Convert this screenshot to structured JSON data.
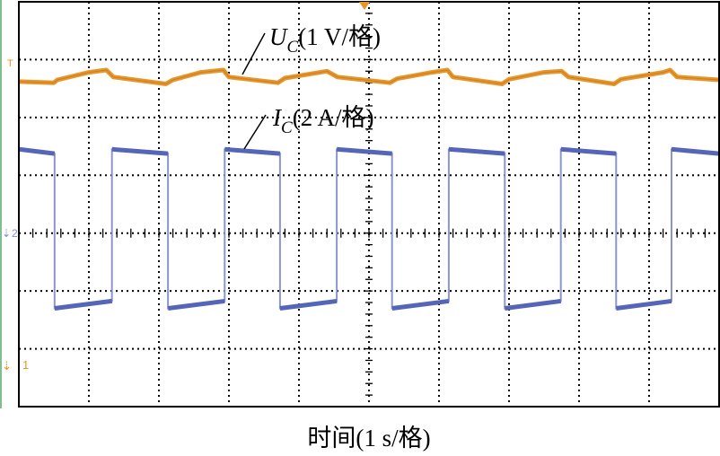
{
  "chart_data": {
    "type": "line",
    "title": "",
    "xlabel": "时间(1 s/格)",
    "ylabel": "",
    "xlim": [
      0,
      10
    ],
    "divisions": {
      "x": 10,
      "y": 7
    },
    "grid": true,
    "legend": "none",
    "markers": {
      "trigger": "T",
      "ch1": "1",
      "ch2": "2"
    },
    "series": [
      {
        "name": "U_C",
        "label_main": "U",
        "label_sub": "C",
        "label_scale": "(1 V/格)",
        "unit": "V",
        "scale_per_div": 1,
        "ground_div_from_top": 6.3,
        "color": "#E8962A",
        "points": [
          [
            0,
            4.92
          ],
          [
            0.5,
            4.9
          ],
          [
            0.55,
            4.95
          ],
          [
            1.0,
            5.08
          ],
          [
            1.25,
            5.12
          ],
          [
            1.35,
            5.0
          ],
          [
            2.1,
            4.88
          ],
          [
            2.2,
            4.95
          ],
          [
            2.6,
            5.08
          ],
          [
            2.92,
            5.12
          ],
          [
            3.0,
            5.0
          ],
          [
            3.7,
            4.9
          ],
          [
            3.8,
            4.98
          ],
          [
            4.4,
            5.1
          ],
          [
            4.55,
            5.0
          ],
          [
            5.3,
            4.9
          ],
          [
            5.4,
            4.97
          ],
          [
            5.9,
            5.08
          ],
          [
            6.12,
            5.12
          ],
          [
            6.2,
            5.0
          ],
          [
            6.9,
            4.88
          ],
          [
            7.0,
            4.96
          ],
          [
            7.5,
            5.08
          ],
          [
            7.75,
            5.1
          ],
          [
            7.85,
            5.0
          ],
          [
            8.5,
            4.88
          ],
          [
            8.6,
            4.96
          ],
          [
            9.2,
            5.08
          ],
          [
            9.3,
            5.12
          ],
          [
            9.4,
            5.0
          ],
          [
            10,
            4.95
          ]
        ]
      },
      {
        "name": "I_C",
        "label_main": "I",
        "label_sub": "C",
        "label_scale": "(2 A/格)",
        "unit": "A",
        "scale_per_div": 2,
        "ground_div_from_top": 4,
        "color": "#5566B8",
        "high": [
          2.9,
          2.75
        ],
        "low": [
          -2.6,
          -2.35
        ],
        "start_state": "high",
        "transitions": [
          0.51,
          1.33,
          2.13,
          2.94,
          3.73,
          4.54,
          5.33,
          6.14,
          6.94,
          7.74,
          8.53,
          9.32
        ]
      }
    ]
  }
}
